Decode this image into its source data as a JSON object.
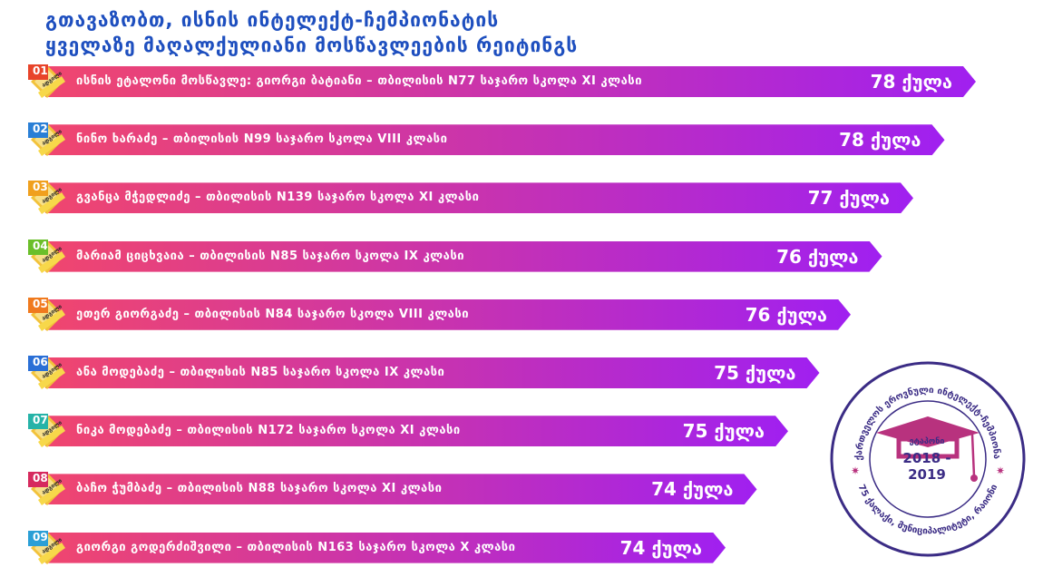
{
  "header": {
    "line1": "გთავაზობთ, ისნის ინტელექტ-ჩემპიონატის",
    "line2": "ყველაზე მაღალქულიანი მოსწავლეების რეიტინგს"
  },
  "colors": {
    "title": "#1e4fbf",
    "bar_start": "#f0466e",
    "bar_end": "#a020f0"
  },
  "badge_label": "ადგილი",
  "ranking": [
    {
      "num": "01",
      "text": "ისნის ეტალონი მოსწავლე: გიორგი ბატიანი – თბილისის N77 საჯარო სკოლა XI კლასი",
      "points": "78 ქულა",
      "badge_color": "#e8442a"
    },
    {
      "num": "02",
      "text": "ნინო ხარაძე – თბილისის N99 საჯარო სკოლა VIII კლასი",
      "points": "78 ქულა",
      "badge_color": "#2a7fd6"
    },
    {
      "num": "03",
      "text": "გვანცა მჭედლიძე – თბილისის N139 საჯარო სკოლა XI კლასი",
      "points": "77 ქულა",
      "badge_color": "#f0a01e"
    },
    {
      "num": "04",
      "text": "მარიამ ციცხვაია – თბილისის N85 საჯარო სკოლა IX კლასი",
      "points": "76 ქულა",
      "badge_color": "#6bbf2a"
    },
    {
      "num": "05",
      "text": "ეთერ გიორგაძე – თბილისის N84 საჯარო სკოლა VIII კლასი",
      "points": "76 ქულა",
      "badge_color": "#f07a1e"
    },
    {
      "num": "06",
      "text": "ანა მოდებაძე – თბილისის N85 საჯარო სკოლა IX კლასი",
      "points": "75 ქულა",
      "badge_color": "#2a6fd6"
    },
    {
      "num": "07",
      "text": "ნიკა მოდებაძე – თბილისის N172 საჯარო სკოლა XI კლასი",
      "points": "75 ქულა",
      "badge_color": "#26b3a8"
    },
    {
      "num": "08",
      "text": "ბაჩო ჭუმბაძე – თბილისის N88 საჯარო სკოლა XI კლასი",
      "points": "74 ქულა",
      "badge_color": "#d62a5e"
    },
    {
      "num": "09",
      "text": "გიორგი გოდერძიშვილი – თბილისის N163 საჯარო სკოლა X კლასი",
      "points": "74 ქულა",
      "badge_color": "#2a9fd6"
    }
  ],
  "seal": {
    "top_arc": "საქართველოს ეროვნული ინტელექტ-ჩემპიონატი",
    "bottom_arc": "75 ქალაქი, მუნიციპალიტეტი, რაიონი",
    "word": "ეტაპონი",
    "years": "2018 - 2019",
    "color": "#3b2c85",
    "hat_color": "#b8327e"
  }
}
